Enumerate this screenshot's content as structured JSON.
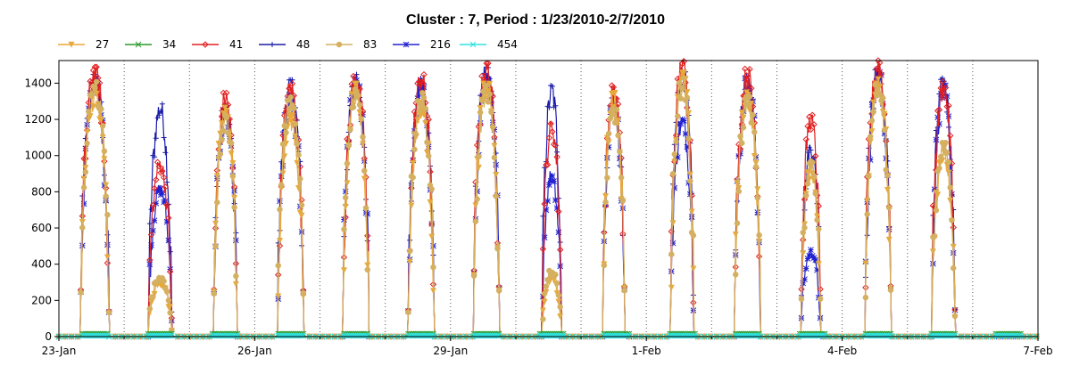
{
  "chart_data": {
    "type": "line",
    "title": "Cluster : 7, Period : 1/23/2010-2/7/2010",
    "xlabel": "",
    "ylabel": "",
    "x_range_days": [
      0,
      15
    ],
    "xlim": [
      "23-Jan",
      "7-Feb"
    ],
    "ylim": [
      0,
      1525
    ],
    "y_ticks": [
      0,
      200,
      400,
      600,
      800,
      1000,
      1200,
      1400
    ],
    "x_ticks": [
      {
        "day": 0,
        "label": "23-Jan"
      },
      {
        "day": 3,
        "label": "26-Jan"
      },
      {
        "day": 6,
        "label": "29-Jan"
      },
      {
        "day": 9,
        "label": "1-Feb"
      },
      {
        "day": 12,
        "label": "4-Feb"
      },
      {
        "day": 15,
        "label": "7-Feb"
      }
    ],
    "minor_gridlines_days": [
      1,
      2,
      4,
      5,
      7,
      8,
      10,
      11,
      13,
      14
    ],
    "grid": "vertical-dotted",
    "legend_position": "top",
    "series": [
      {
        "name": "27",
        "color": "#e8a93a",
        "marker": "triangle-down"
      },
      {
        "name": "34",
        "color": "#2a9a2a",
        "marker": "x"
      },
      {
        "name": "41",
        "color": "#e02020",
        "marker": "diamond"
      },
      {
        "name": "48",
        "color": "#1a1aa8",
        "marker": "plus"
      },
      {
        "name": "83",
        "color": "#d4b060",
        "marker": "circle"
      },
      {
        "name": "216",
        "color": "#2020d0",
        "marker": "star"
      },
      {
        "name": "454",
        "color": "#30e0e0",
        "marker": "x"
      }
    ],
    "daily_peaks": [
      {
        "day": 0,
        "center": 0.55,
        "width": 0.22,
        "series": {
          "27": 1330,
          "34": 15,
          "41": 1460,
          "48": 1420,
          "83": 1380,
          "216": 1400,
          "454": 5
        }
      },
      {
        "day": 1,
        "center": 1.55,
        "width": 0.18,
        "series": {
          "27": 300,
          "34": 15,
          "41": 950,
          "48": 1260,
          "83": 330,
          "216": 820,
          "454": 5
        }
      },
      {
        "day": 2,
        "center": 2.55,
        "width": 0.18,
        "series": {
          "27": 1250,
          "34": 15,
          "41": 1320,
          "48": 1260,
          "83": 1200,
          "216": 1240,
          "454": 5
        }
      },
      {
        "day": 3,
        "center": 3.55,
        "width": 0.2,
        "series": {
          "27": 1200,
          "34": 15,
          "41": 1370,
          "48": 1390,
          "83": 1300,
          "216": 1310,
          "454": 5
        }
      },
      {
        "day": 4,
        "center": 4.55,
        "width": 0.2,
        "series": {
          "27": 1370,
          "34": 15,
          "41": 1430,
          "48": 1420,
          "83": 1340,
          "216": 1400,
          "454": 5
        }
      },
      {
        "day": 5,
        "center": 5.55,
        "width": 0.2,
        "series": {
          "27": 1280,
          "34": 15,
          "41": 1420,
          "48": 1400,
          "83": 1320,
          "216": 1380,
          "454": 5
        }
      },
      {
        "day": 6,
        "center": 6.55,
        "width": 0.2,
        "series": {
          "27": 1380,
          "34": 15,
          "41": 1480,
          "48": 1460,
          "83": 1360,
          "216": 1440,
          "454": 5
        }
      },
      {
        "day": 7,
        "center": 7.55,
        "width": 0.15,
        "series": {
          "27": 330,
          "34": 15,
          "41": 1160,
          "48": 1360,
          "83": 360,
          "216": 900,
          "454": 5
        }
      },
      {
        "day": 8,
        "center": 8.5,
        "width": 0.17,
        "series": {
          "27": 1320,
          "34": 15,
          "41": 1360,
          "48": 1300,
          "83": 1250,
          "216": 1280,
          "454": 5
        }
      },
      {
        "day": 9,
        "center": 9.55,
        "width": 0.18,
        "series": {
          "27": 1430,
          "34": 15,
          "41": 1500,
          "48": 1460,
          "83": 1400,
          "216": 1180,
          "454": 5
        }
      },
      {
        "day": 10,
        "center": 10.55,
        "width": 0.2,
        "series": {
          "27": 1330,
          "34": 15,
          "41": 1450,
          "48": 1410,
          "83": 1300,
          "216": 1400,
          "454": 5
        }
      },
      {
        "day": 11,
        "center": 11.52,
        "width": 0.15,
        "series": {
          "27": 930,
          "34": 15,
          "41": 1200,
          "48": 1040,
          "83": 950,
          "216": 470,
          "454": 5
        }
      },
      {
        "day": 12,
        "center": 12.55,
        "width": 0.2,
        "series": {
          "27": 1410,
          "34": 15,
          "41": 1500,
          "48": 1460,
          "83": 1380,
          "216": 1440,
          "454": 5
        }
      },
      {
        "day": 13,
        "center": 13.55,
        "width": 0.18,
        "series": {
          "27": 1000,
          "34": 15,
          "41": 1380,
          "48": 1400,
          "83": 1050,
          "216": 1360,
          "454": 5
        }
      },
      {
        "day": 14,
        "center": 14.5,
        "width": 0.1,
        "series": {
          "27": 0,
          "34": 0,
          "41": 0,
          "48": 0,
          "83": 0,
          "216": 0,
          "454": 0
        }
      }
    ]
  }
}
